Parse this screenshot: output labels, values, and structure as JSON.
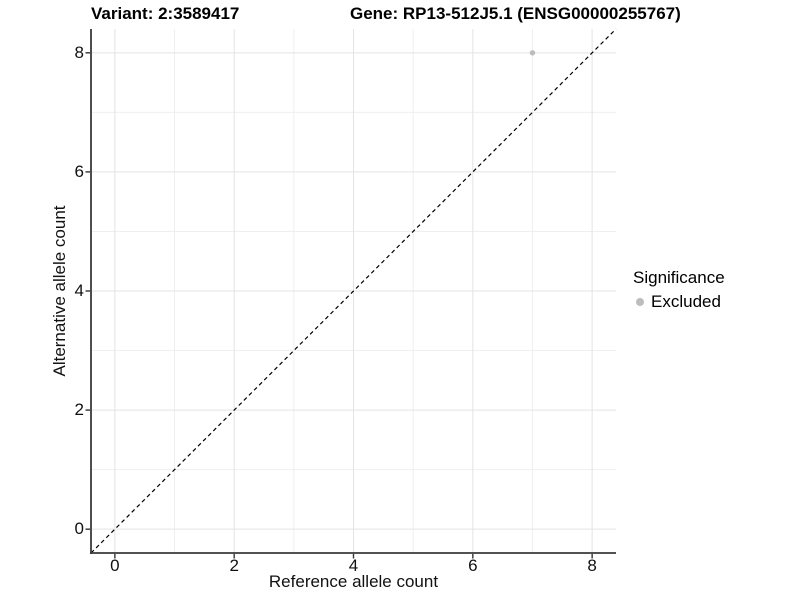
{
  "chart_data": {
    "type": "scatter",
    "title_left": "Variant: 2:3589417",
    "title_right": "Gene: RP13-512J5.1 (ENSG00000255767)",
    "xlabel": "Reference allele count",
    "ylabel": "Alternative allele count",
    "xlim": [
      -0.4,
      8.4
    ],
    "ylim": [
      -0.4,
      8.4
    ],
    "x_major_ticks": [
      0,
      2,
      4,
      6,
      8
    ],
    "y_major_ticks": [
      0,
      2,
      4,
      6,
      8
    ],
    "x_minor_gridlines": [
      1,
      3,
      5,
      7
    ],
    "y_minor_gridlines": [
      1,
      3,
      5,
      7
    ],
    "grid": true,
    "points": [
      {
        "x": 7,
        "y": 8,
        "significance": "Excluded"
      }
    ],
    "identity_line": {
      "style": "dashed",
      "slope": 1,
      "intercept": 0,
      "color": "#000000"
    },
    "legend": {
      "title": "Significance",
      "position": "right",
      "items": [
        {
          "label": "Excluded",
          "color": "#bdbdbd",
          "marker": "circle"
        }
      ]
    },
    "colors": {
      "excluded_point": "#bdbdbd",
      "major_grid": "#e3e3e3",
      "minor_grid": "#efefef",
      "axis_line": "#3a3a3a",
      "tick_mark": "#333333",
      "dashed_line": "#000000",
      "background": "#ffffff"
    }
  }
}
